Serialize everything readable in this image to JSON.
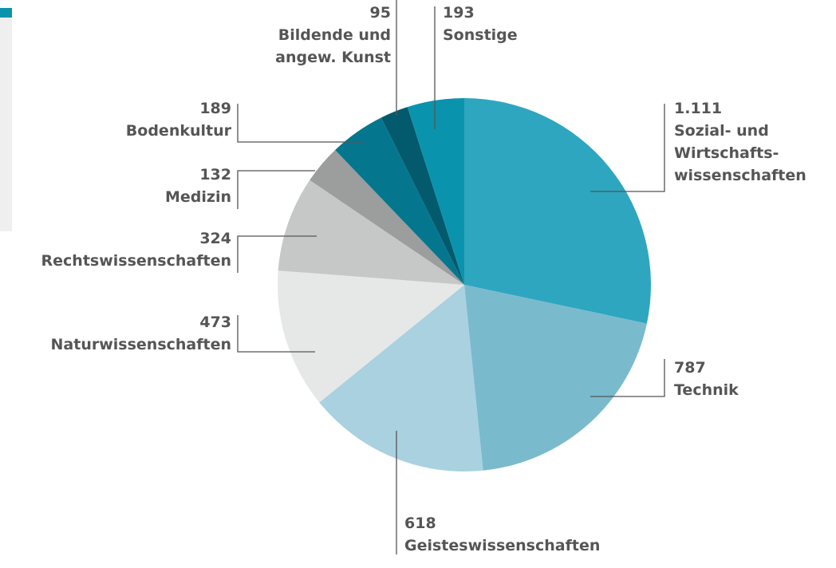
{
  "chart_data": {
    "type": "pie",
    "categories": [
      "Sozial- und\nWirtschafts-\nwissenschaften",
      "Technik",
      "Geisteswissenschaften",
      "Naturwissenschaften",
      "Rechtswissenschaften",
      "Medizin",
      "Bodenkultur",
      "Bildende und\nangew. Kunst",
      "Sonstige"
    ],
    "values": [
      1111,
      787,
      618,
      473,
      324,
      132,
      189,
      95,
      193
    ],
    "value_labels": [
      "1.111",
      "787",
      "618",
      "473",
      "324",
      "132",
      "189",
      "95",
      "193"
    ],
    "colors": [
      "#2ea6bf",
      "#7abacd",
      "#a9d1df",
      "#e6e8e8",
      "#c6c8c7",
      "#9c9d9d",
      "#04778f",
      "#035a6c",
      "#0a93ad"
    ]
  }
}
